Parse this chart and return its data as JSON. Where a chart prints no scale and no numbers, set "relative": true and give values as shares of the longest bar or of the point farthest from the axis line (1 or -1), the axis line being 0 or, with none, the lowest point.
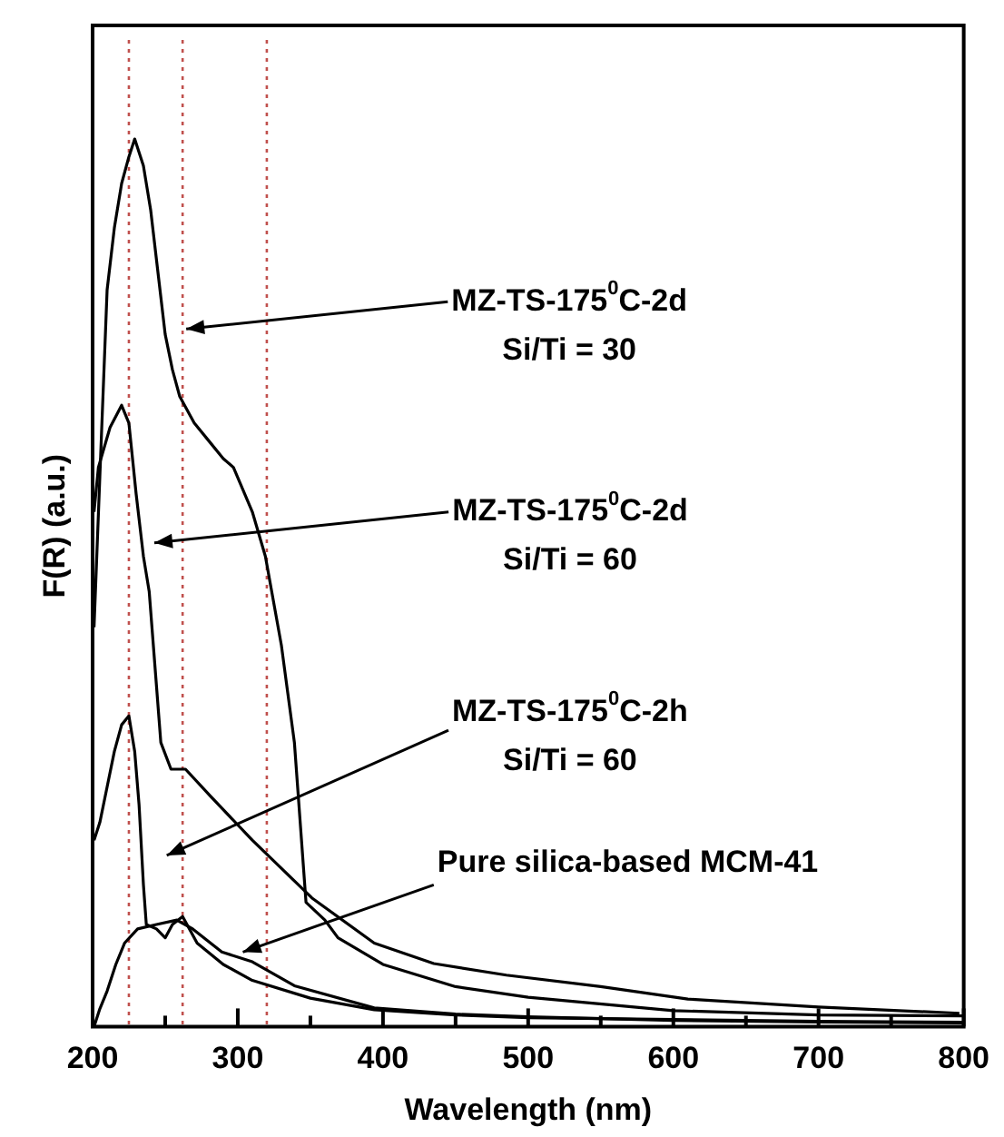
{
  "chart_data": {
    "type": "line",
    "relative": true,
    "xlabel": "Wavelength (nm)",
    "ylabel": "F(R) (a.u.)",
    "xlim": [
      200,
      800
    ],
    "xticks": [
      200,
      {
        "value": 250,
        "label": null
      },
      300,
      {
        "value": 350,
        "label": null
      },
      400,
      {
        "value": 450,
        "label": null
      },
      500,
      {
        "value": 550,
        "label": null
      },
      600,
      {
        "value": 650,
        "label": null
      },
      700,
      {
        "value": 750,
        "label": null
      },
      800
    ],
    "grid": false,
    "legend": false,
    "marker": "none",
    "line_style": "solid",
    "series": [
      {
        "color": "#000000",
        "x": [
          201,
          205,
          210,
          215,
          220,
          225,
          229,
          235,
          240,
          245,
          250,
          255,
          260,
          270,
          280,
          290,
          297,
          310,
          319,
          330,
          339,
          347,
          360,
          369,
          400,
          450,
          500,
          600,
          700,
          800
        ],
        "values": [
          0.45,
          0.62,
          0.83,
          0.9,
          0.95,
          0.98,
          1.0,
          0.97,
          0.92,
          0.85,
          0.78,
          0.74,
          0.71,
          0.68,
          0.66,
          0.64,
          0.63,
          0.58,
          0.53,
          0.43,
          0.32,
          0.14,
          0.12,
          0.1,
          0.07,
          0.045,
          0.033,
          0.018,
          0.013,
          0.012
        ]
      },
      {
        "color": "#000000",
        "x": [
          201,
          204,
          212,
          220,
          225,
          230,
          235,
          239,
          247,
          254,
          264,
          281,
          310,
          351,
          394,
          435,
          485,
          550,
          610,
          700,
          797
        ],
        "values": [
          0.58,
          0.63,
          0.675,
          0.7,
          0.68,
          0.6,
          0.53,
          0.49,
          0.32,
          0.29,
          0.29,
          0.26,
          0.21,
          0.145,
          0.094,
          0.071,
          0.058,
          0.045,
          0.031,
          0.022,
          0.015
        ]
      },
      {
        "color": "#000000",
        "x": [
          201,
          205,
          210,
          215,
          220,
          225,
          229,
          232,
          235,
          237,
          244,
          250,
          255,
          262,
          272,
          290,
          310,
          350,
          394,
          450,
          500,
          600,
          700,
          800
        ],
        "values": [
          0.21,
          0.23,
          0.27,
          0.31,
          0.34,
          0.35,
          0.31,
          0.25,
          0.16,
          0.115,
          0.11,
          0.1,
          0.115,
          0.124,
          0.094,
          0.07,
          0.052,
          0.032,
          0.019,
          0.013,
          0.01,
          0.008,
          0.006,
          0.005
        ]
      },
      {
        "color": "#000000",
        "x": [
          201,
          205,
          210,
          216,
          222,
          231,
          244,
          258,
          269,
          289,
          310,
          339,
          394,
          450,
          500,
          600,
          700,
          800
        ],
        "values": [
          0.0,
          0.02,
          0.04,
          0.07,
          0.094,
          0.11,
          0.115,
          0.12,
          0.11,
          0.084,
          0.073,
          0.046,
          0.021,
          0.014,
          0.011,
          0.007,
          0.005,
          0.004
        ]
      }
    ],
    "ref_lines": [
      {
        "axis": "x",
        "value": 225,
        "color": "#c0504d",
        "line_style": "dotted"
      },
      {
        "axis": "x",
        "value": 262,
        "color": "#c0504d",
        "line_style": "dotted"
      },
      {
        "axis": "x",
        "value": 320,
        "color": "#c0504d",
        "line_style": "dotted"
      }
    ],
    "annotations": [
      {
        "text": "MZ-TS-175$^{0}$C-2d\nSi/Ti = 30",
        "x": 262,
        "y": 0.786
      },
      {
        "text": "MZ-TS-175$^{0}$C-2d\nSi/Ti = 60",
        "x": 240,
        "y": 0.545
      },
      "MZ-TS-175$^{0}$C-2h\nSi/Ti = 60",
      {
        "text": "Pure silica-based MCM-41",
        "x": 301,
        "y": 0.084
      }
    ]
  }
}
